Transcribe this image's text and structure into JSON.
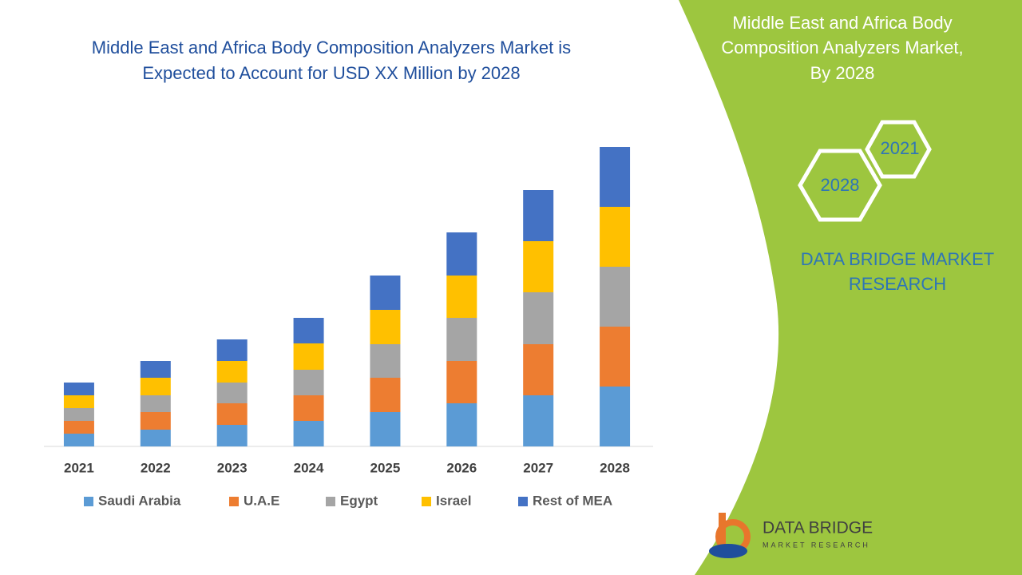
{
  "chart_data": {
    "type": "stacked-bar",
    "title": [
      "Middle East and Africa Body Composition Analyzers Market is",
      "Expected to Account for USD XX Million by 2028"
    ],
    "categories": [
      "2021",
      "2022",
      "2023",
      "2024",
      "2025",
      "2026",
      "2027",
      "2028"
    ],
    "series": [
      {
        "name": "Saudi Arabia",
        "color": "#5b9bd5",
        "values": [
          16,
          21,
          27,
          32,
          43,
          54,
          64,
          75
        ]
      },
      {
        "name": "U.A.E",
        "color": "#ed7d31",
        "values": [
          16,
          22,
          27,
          32,
          43,
          53,
          64,
          75
        ]
      },
      {
        "name": "Egypt",
        "color": "#a5a5a5",
        "values": [
          16,
          21,
          26,
          32,
          42,
          54,
          65,
          75
        ]
      },
      {
        "name": "Israel",
        "color": "#ffc000",
        "values": [
          16,
          22,
          27,
          33,
          43,
          53,
          64,
          75
        ]
      },
      {
        "name": "Rest of MEA",
        "color": "#4472c4",
        "values": [
          16,
          21,
          27,
          32,
          43,
          54,
          64,
          75
        ]
      }
    ],
    "ylim": [
      0,
      400
    ]
  },
  "panel": {
    "title": [
      "Middle East and Africa Body",
      "Composition Analyzers Market,",
      "By 2028"
    ],
    "hexagons": [
      "2021",
      "2028"
    ],
    "brand": [
      "DATA BRIDGE MARKET",
      "RESEARCH"
    ],
    "logo": {
      "name": "DATA BRIDGE",
      "tagline": "MARKET RESEARCH"
    }
  }
}
